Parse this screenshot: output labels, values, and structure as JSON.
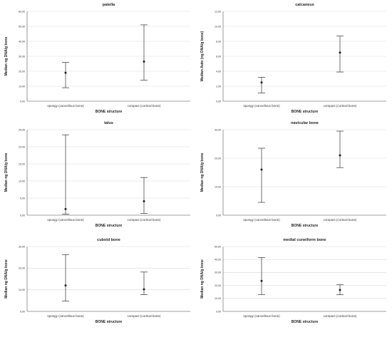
{
  "chart_data": [
    {
      "type": "errorbar",
      "title": "patella",
      "xlabel": "BONE structure",
      "ylabel": "Median ng DNA/g bone",
      "categories": [
        "spongy (cancellous bone)",
        "compact (cortical bone)"
      ],
      "ylim": [
        0,
        60
      ],
      "yticks": [
        "0,00",
        "10,00",
        "20,00",
        "30,00",
        "40,00",
        "50,00",
        "60,00"
      ],
      "ytick_values": [
        0,
        10,
        20,
        30,
        40,
        50,
        60
      ],
      "points": [
        {
          "median": 19,
          "lower": 9,
          "upper": 26
        },
        {
          "median": 26.5,
          "lower": 14,
          "upper": 51
        }
      ]
    },
    {
      "type": "errorbar",
      "title": "calcaneus",
      "xlabel": "BONE structure",
      "ylabel": "Median Auto (ng DNA/g bone)",
      "categories": [
        "spongy (cancellous bone)",
        "compact (cortical bone)"
      ],
      "ylim": [
        0,
        12
      ],
      "yticks": [
        "0,00",
        "2,00",
        "4,00",
        "6,00",
        "8,00",
        "10,00",
        "12,00"
      ],
      "ytick_values": [
        0,
        2,
        4,
        6,
        8,
        10,
        12
      ],
      "points": [
        {
          "median": 2.5,
          "lower": 1.1,
          "upper": 3.2
        },
        {
          "median": 6.5,
          "lower": 3.9,
          "upper": 8.7
        }
      ]
    },
    {
      "type": "errorbar",
      "title": "talus",
      "xlabel": "BONE structure",
      "ylabel": "Median ng DNA/g bone",
      "categories": [
        "spongy (cancellous bone)",
        "compact (cortical bone)"
      ],
      "ylim": [
        0,
        25
      ],
      "yticks": [
        "0,00",
        "5,00",
        "10,00",
        "15,00",
        "20,00",
        "25,00"
      ],
      "ytick_values": [
        0,
        5,
        10,
        15,
        20,
        25
      ],
      "points": [
        {
          "median": 1.8,
          "lower": 0.3,
          "upper": 23.5
        },
        {
          "median": 4.1,
          "lower": 0.5,
          "upper": 11
        }
      ]
    },
    {
      "type": "errorbar",
      "title": "navicular bone",
      "xlabel": "BONE structure",
      "ylabel": "Median ng DNA/g bone",
      "categories": [
        "spongy (cancellous bone)",
        "compact (cortical bone)"
      ],
      "ylim": [
        0,
        30
      ],
      "yticks": [
        "0,00",
        "10,00",
        "20,00",
        "30,00"
      ],
      "ytick_values": [
        0,
        10,
        20,
        30
      ],
      "points": [
        {
          "median": 16,
          "lower": 4.5,
          "upper": 23.5
        },
        {
          "median": 21,
          "lower": 16.7,
          "upper": 29.5
        }
      ]
    },
    {
      "type": "errorbar",
      "title": "cuboid bone",
      "xlabel": "BONE structure",
      "ylabel": "Median ng DNA/g bone",
      "categories": [
        "spongy (cancellous bone)",
        "compact (cortical bone)"
      ],
      "ylim": [
        0,
        30
      ],
      "yticks": [
        "0,00",
        "10,00",
        "20,00",
        "30,00"
      ],
      "ytick_values": [
        0,
        10,
        20,
        30
      ],
      "points": [
        {
          "median": 12,
          "lower": 4.8,
          "upper": 26.3
        },
        {
          "median": 10.2,
          "lower": 7.7,
          "upper": 18.2
        }
      ]
    },
    {
      "type": "errorbar",
      "title": "medial cuneiform bone",
      "xlabel": "BONE structure",
      "ylabel": "Median ng DNA/g bone",
      "categories": [
        "spongy (cancellous bone)",
        "compact (cortical bone)"
      ],
      "ylim": [
        0,
        50
      ],
      "yticks": [
        "0,00",
        "10,00",
        "20,00",
        "30,00",
        "40,00",
        "50,00"
      ],
      "ytick_values": [
        0,
        10,
        20,
        30,
        40,
        50
      ],
      "points": [
        {
          "median": 23.5,
          "lower": 13,
          "upper": 41.5
        },
        {
          "median": 16.5,
          "lower": 12.8,
          "upper": 20.5
        }
      ]
    }
  ]
}
